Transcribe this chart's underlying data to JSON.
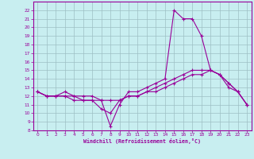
{
  "xlabel": "Windchill (Refroidissement éolien,°C)",
  "x": [
    0,
    1,
    2,
    3,
    4,
    5,
    6,
    7,
    8,
    9,
    10,
    11,
    12,
    13,
    14,
    15,
    16,
    17,
    18,
    19,
    20,
    21,
    22,
    23
  ],
  "line1": [
    12.5,
    12.0,
    12.0,
    12.5,
    12.0,
    12.0,
    12.0,
    11.5,
    8.5,
    11.0,
    12.5,
    12.5,
    13.0,
    13.5,
    14.0,
    22.0,
    21.0,
    21.0,
    19.0,
    15.0,
    14.5,
    13.0,
    12.5,
    11.0
  ],
  "line2": [
    12.5,
    12.0,
    12.0,
    12.0,
    12.0,
    11.5,
    11.5,
    11.5,
    11.5,
    11.5,
    12.0,
    12.0,
    12.5,
    13.0,
    13.5,
    14.0,
    14.5,
    15.0,
    15.0,
    15.0,
    14.5,
    13.5,
    12.5,
    11.0
  ],
  "line3": [
    12.5,
    12.0,
    12.0,
    12.0,
    11.5,
    11.5,
    11.5,
    10.5,
    10.0,
    11.5,
    12.0,
    12.0,
    12.5,
    12.5,
    13.0,
    13.5,
    14.0,
    14.5,
    14.5,
    15.0,
    14.5,
    13.5,
    12.5,
    11.0
  ],
  "color": "#990099",
  "bg_color": "#c8eef0",
  "grid_color": "#9dbfc4",
  "ylim": [
    8,
    23
  ],
  "xlim": [
    -0.5,
    23.5
  ],
  "yticks": [
    8,
    9,
    10,
    11,
    12,
    13,
    14,
    15,
    16,
    17,
    18,
    19,
    20,
    21,
    22
  ],
  "xticks": [
    0,
    1,
    2,
    3,
    4,
    5,
    6,
    7,
    8,
    9,
    10,
    11,
    12,
    13,
    14,
    15,
    16,
    17,
    18,
    19,
    20,
    21,
    22,
    23
  ]
}
